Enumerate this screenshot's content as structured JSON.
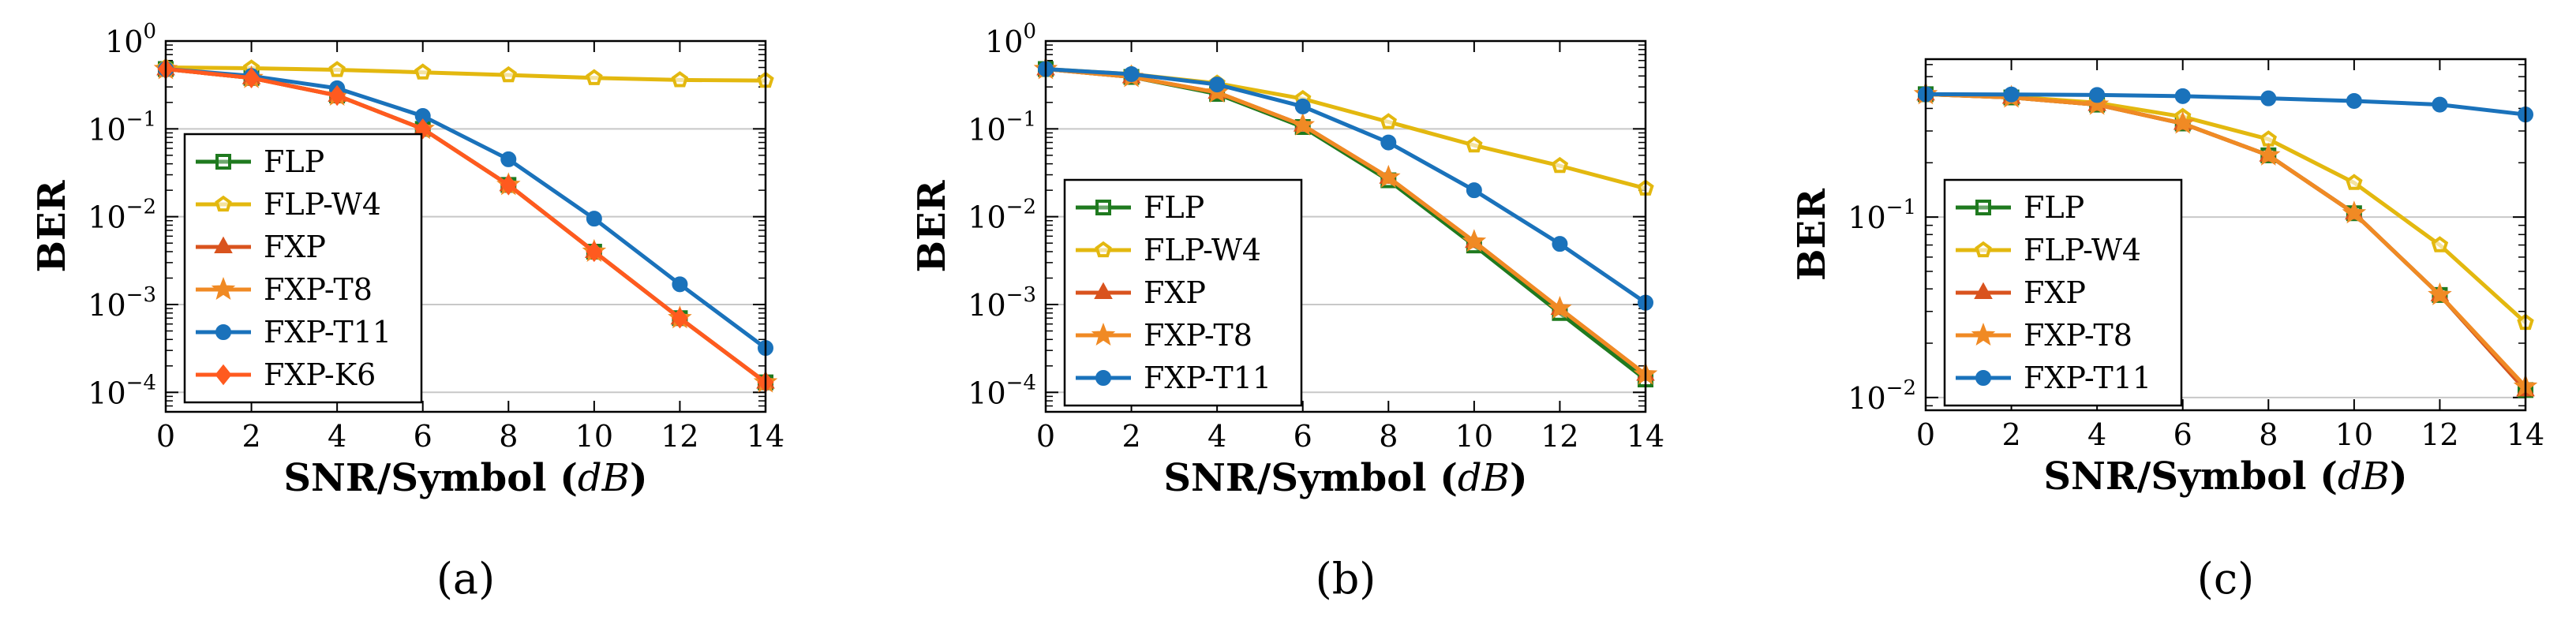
{
  "colors": {
    "FLP": "#1f7a1f",
    "FLP-W4": "#e3b80f",
    "FXP": "#d9531e",
    "FXP-T8": "#f08a24",
    "FXP-T11": "#1a72bb",
    "FXP-K6": "#ff5a1f"
  },
  "chart_data": [
    {
      "type": "line",
      "panel_label": "(a)",
      "xlabel": "SNR/Symbol",
      "xunit": "dB",
      "ylabel": "BER",
      "yscale": "log",
      "xlim": [
        0,
        14
      ],
      "ylim": [
        6e-05,
        1
      ],
      "xticks": [
        "0",
        "2",
        "4",
        "6",
        "8",
        "10",
        "12",
        "14"
      ],
      "yticks": [
        {
          "base": "10",
          "exp": "0",
          "v": 1
        },
        {
          "base": "10",
          "exp": "−1",
          "v": 0.1
        },
        {
          "base": "10",
          "exp": "−2",
          "v": 0.01
        },
        {
          "base": "10",
          "exp": "−3",
          "v": 0.001
        },
        {
          "base": "10",
          "exp": "−4",
          "v": 0.0001
        }
      ],
      "legend_position": "bottom-left",
      "x": [
        0,
        2,
        4,
        6,
        8,
        10,
        12,
        14
      ],
      "series": [
        {
          "name": "FLP",
          "marker": "square",
          "values": [
            0.48,
            0.38,
            0.24,
            0.1,
            0.023,
            0.004,
            0.0007,
            0.00013
          ]
        },
        {
          "name": "FLP-W4",
          "marker": "pentagon",
          "values": [
            0.5,
            0.49,
            0.47,
            0.44,
            0.41,
            0.38,
            0.36,
            0.355
          ]
        },
        {
          "name": "FXP",
          "marker": "triangle",
          "values": [
            0.48,
            0.38,
            0.24,
            0.1,
            0.023,
            0.004,
            0.0007,
            0.00013
          ]
        },
        {
          "name": "FXP-T8",
          "marker": "star",
          "values": [
            0.48,
            0.38,
            0.24,
            0.1,
            0.023,
            0.004,
            0.0007,
            0.00013
          ]
        },
        {
          "name": "FXP-T11",
          "marker": "circle",
          "values": [
            0.48,
            0.4,
            0.29,
            0.14,
            0.045,
            0.0095,
            0.0017,
            0.00032
          ]
        },
        {
          "name": "FXP-K6",
          "marker": "diamond",
          "values": [
            0.48,
            0.38,
            0.24,
            0.1,
            0.023,
            0.004,
            0.0007,
            0.00013
          ]
        }
      ]
    },
    {
      "type": "line",
      "panel_label": "(b)",
      "xlabel": "SNR/Symbol",
      "xunit": "dB",
      "ylabel": "BER",
      "yscale": "log",
      "xlim": [
        0,
        14
      ],
      "ylim": [
        6e-05,
        1
      ],
      "xticks": [
        "0",
        "2",
        "4",
        "6",
        "8",
        "10",
        "12",
        "14"
      ],
      "yticks": [
        {
          "base": "10",
          "exp": "0",
          "v": 1
        },
        {
          "base": "10",
          "exp": "−1",
          "v": 0.1
        },
        {
          "base": "10",
          "exp": "−2",
          "v": 0.01
        },
        {
          "base": "10",
          "exp": "−3",
          "v": 0.001
        },
        {
          "base": "10",
          "exp": "−4",
          "v": 0.0001
        }
      ],
      "legend_position": "bottom-left",
      "x": [
        0,
        2,
        4,
        6,
        8,
        10,
        12,
        14
      ],
      "series": [
        {
          "name": "FLP",
          "marker": "square",
          "values": [
            0.48,
            0.39,
            0.25,
            0.105,
            0.026,
            0.0047,
            0.0008,
            0.00014
          ]
        },
        {
          "name": "FLP-W4",
          "marker": "pentagon",
          "values": [
            0.48,
            0.42,
            0.33,
            0.22,
            0.12,
            0.065,
            0.038,
            0.021
          ]
        },
        {
          "name": "FXP",
          "marker": "triangle",
          "values": [
            0.48,
            0.39,
            0.26,
            0.11,
            0.028,
            0.0052,
            0.0009,
            0.00016
          ]
        },
        {
          "name": "FXP-T8",
          "marker": "star",
          "values": [
            0.48,
            0.39,
            0.26,
            0.11,
            0.028,
            0.0052,
            0.0009,
            0.00016
          ]
        },
        {
          "name": "FXP-T11",
          "marker": "circle",
          "values": [
            0.48,
            0.42,
            0.32,
            0.18,
            0.07,
            0.02,
            0.0049,
            0.00105
          ]
        }
      ]
    },
    {
      "type": "line",
      "panel_label": "(c)",
      "xlabel": "SNR/Symbol",
      "xunit": "dB",
      "ylabel": "BER",
      "yscale": "log",
      "xlim": [
        0,
        14
      ],
      "ylim": [
        0.0085,
        0.75
      ],
      "xticks": [
        "0",
        "2",
        "4",
        "6",
        "8",
        "10",
        "12",
        "14"
      ],
      "yticks": [
        {
          "base": "10",
          "exp": "−1",
          "v": 0.1
        },
        {
          "base": "10",
          "exp": "−2",
          "v": 0.01
        }
      ],
      "legend_position": "bottom-left",
      "x": [
        0,
        2,
        4,
        6,
        8,
        10,
        12,
        14
      ],
      "series": [
        {
          "name": "FLP",
          "marker": "square",
          "values": [
            0.48,
            0.46,
            0.42,
            0.33,
            0.22,
            0.105,
            0.037,
            0.011
          ]
        },
        {
          "name": "FLP-W4",
          "marker": "pentagon",
          "values": [
            0.48,
            0.465,
            0.43,
            0.36,
            0.27,
            0.155,
            0.07,
            0.026
          ]
        },
        {
          "name": "FXP",
          "marker": "triangle",
          "values": [
            0.48,
            0.46,
            0.42,
            0.33,
            0.22,
            0.105,
            0.037,
            0.011
          ]
        },
        {
          "name": "FXP-T8",
          "marker": "star",
          "values": [
            0.48,
            0.46,
            0.42,
            0.33,
            0.22,
            0.105,
            0.037,
            0.0115
          ]
        },
        {
          "name": "FXP-T11",
          "marker": "circle",
          "values": [
            0.48,
            0.478,
            0.475,
            0.468,
            0.455,
            0.44,
            0.42,
            0.37
          ]
        }
      ]
    }
  ]
}
